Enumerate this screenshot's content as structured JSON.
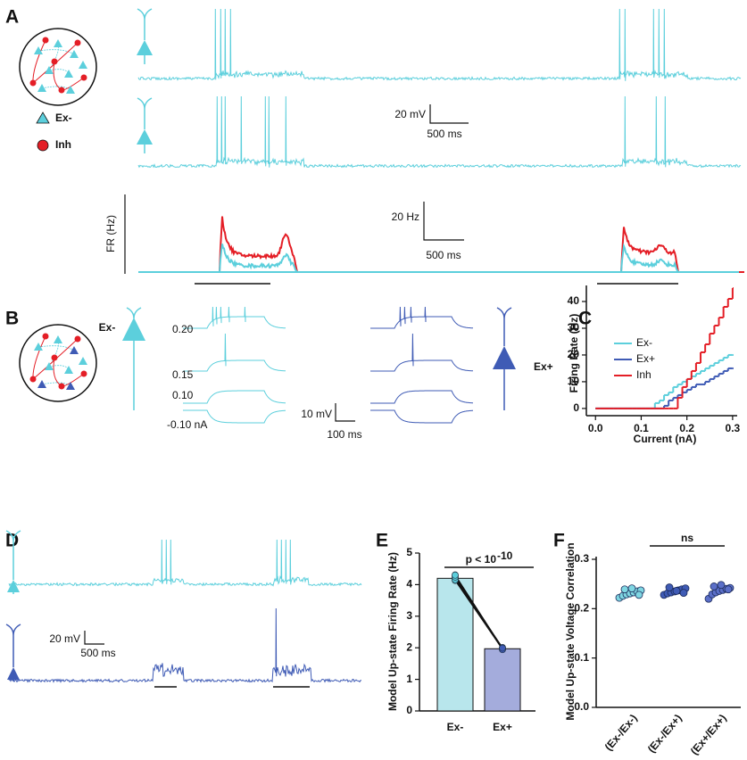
{
  "panels": {
    "a": {
      "letter": "A",
      "legend": [
        "Ex-",
        "Inh"
      ],
      "scale_voltage": "20 mV",
      "scale_time": "500 ms",
      "fr_label": "FR (Hz)",
      "scale_rate": "20 Hz",
      "scale_time_fr": "500 ms"
    },
    "b": {
      "letter": "B",
      "cell_left": "Ex-",
      "cell_right": "Ex+",
      "currents": [
        "0.20",
        "0.15",
        "0.10",
        "-0.10 nA"
      ],
      "scale_voltage": "10 mV",
      "scale_time": "100 ms"
    },
    "c": {
      "letter": "C"
    },
    "d": {
      "letter": "D",
      "scale_voltage": "20 mV",
      "scale_time": "500 ms"
    },
    "e": {
      "letter": "E"
    },
    "f": {
      "letter": "F"
    }
  },
  "chart_data": [
    {
      "type": "line",
      "xlabel": "Current (nA)",
      "ylabel": "Firing Rate (Hz)",
      "x": [
        0,
        0.01,
        0.02,
        0.03,
        0.04,
        0.05,
        0.06,
        0.07,
        0.08,
        0.09,
        0.1,
        0.11,
        0.12,
        0.13,
        0.14,
        0.15,
        0.16,
        0.17,
        0.18,
        0.19,
        0.2,
        0.21,
        0.22,
        0.23,
        0.24,
        0.25,
        0.26,
        0.27,
        0.28,
        0.29,
        0.3
      ],
      "series": [
        {
          "name": "Ex-",
          "color": "#5ccfdc",
          "values": [
            0,
            0,
            0,
            0,
            0,
            0,
            0,
            0,
            0,
            0,
            0,
            0,
            0,
            2,
            3,
            5,
            6,
            8,
            9,
            10,
            11,
            12,
            13,
            14,
            15,
            16,
            17,
            18,
            19,
            20,
            20
          ]
        },
        {
          "name": "Ex+",
          "color": "#3f5bb5",
          "values": [
            0,
            0,
            0,
            0,
            0,
            0,
            0,
            0,
            0,
            0,
            0,
            0,
            0,
            0,
            0,
            1,
            3,
            4,
            5,
            6,
            7,
            8,
            9,
            9,
            10,
            11,
            12,
            13,
            14,
            15,
            15
          ]
        },
        {
          "name": "Inh",
          "color": "#e41e26",
          "values": [
            0,
            0,
            0,
            0,
            0,
            0,
            0,
            0,
            0,
            0,
            0,
            0,
            0,
            0,
            0,
            0,
            0,
            0,
            4,
            8,
            11,
            14,
            17,
            21,
            24,
            28,
            31,
            34,
            38,
            41,
            45
          ]
        }
      ],
      "xlim": [
        -0.02,
        0.31
      ],
      "ylim": [
        -2.7,
        46
      ],
      "xticks": [
        {
          "value": 0,
          "label": "0.0"
        },
        0.1,
        0.2,
        0.3
      ],
      "yticks": [
        0,
        10,
        20,
        30,
        40
      ],
      "legend": "upper left",
      "drawstyle": "steps-post"
    },
    {
      "type": "bar",
      "ylabel": "Model Up-state Firing Rate (Hz)",
      "categories": [
        "Ex-",
        "Ex+"
      ],
      "values": [
        4.2,
        1.97
      ],
      "colors": [
        "#b8e6ec",
        "#a4acdc"
      ],
      "points": [
        [
          4.13,
          4.18,
          4.22,
          4.25,
          4.28,
          4.31,
          4.2,
          4.16,
          4.24,
          4.3
        ],
        [
          1.95,
          1.97,
          1.99,
          2.0,
          1.96,
          1.98,
          2.01,
          1.97,
          1.94,
          1.99
        ]
      ],
      "point_colors": [
        "#5ccfdc",
        "#3f5bb5"
      ],
      "ylim": [
        0,
        5
      ],
      "yticks": [
        0,
        1,
        2,
        3,
        4,
        5
      ],
      "annotation": "p < 10",
      "annotation_exponent": "-10"
    },
    {
      "type": "strip",
      "ylabel": "Model Up-state Voltage Correlation",
      "categories": [
        "(Ex-/Ex-)",
        "(Ex-/Ex+)",
        "(Ex+/Ex+)"
      ],
      "values": [
        [
          0.222,
          0.226,
          0.229,
          0.231,
          0.233,
          0.235,
          0.237,
          0.239,
          0.241,
          0.228
        ],
        [
          0.228,
          0.231,
          0.233,
          0.235,
          0.237,
          0.239,
          0.241,
          0.243,
          0.236,
          0.232
        ],
        [
          0.22,
          0.229,
          0.233,
          0.236,
          0.238,
          0.24,
          0.242,
          0.245,
          0.248,
          0.239
        ]
      ],
      "colors": [
        "#7fd6e2",
        "#3f5bb5",
        "#5b6fc8"
      ],
      "ylim": [
        0,
        0.3
      ],
      "yticks": [
        {
          "value": 0,
          "label": "0.0"
        },
        0.1,
        0.2,
        0.3
      ],
      "annotation": "ns"
    }
  ]
}
